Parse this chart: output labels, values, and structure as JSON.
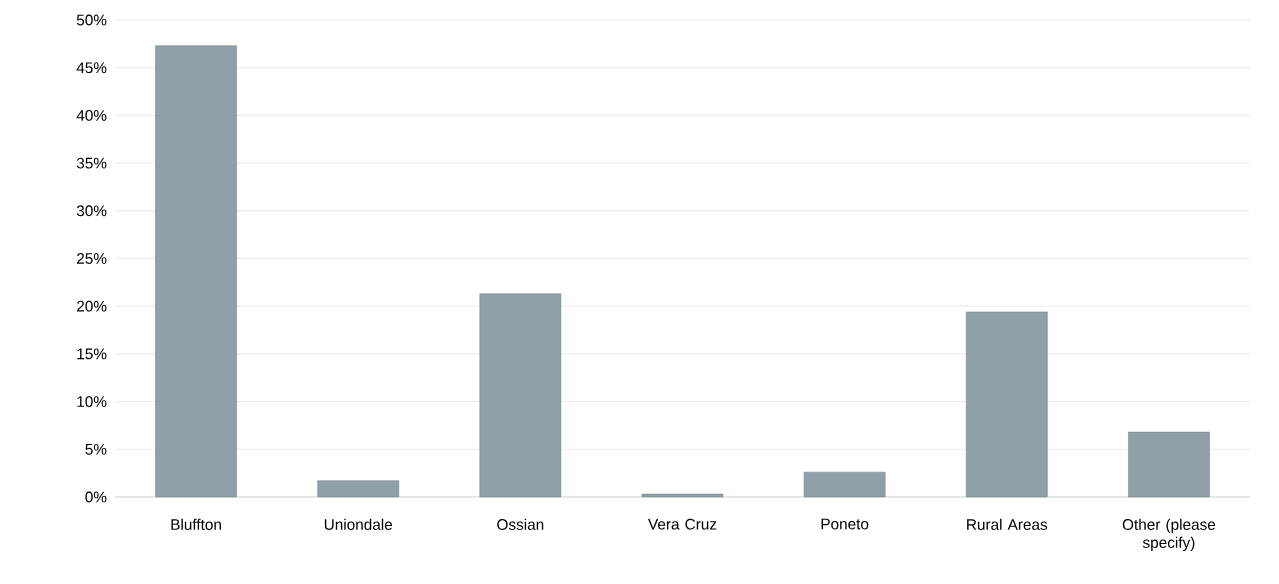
{
  "chart_data": {
    "type": "bar",
    "categories": [
      "Bluffton",
      "Uniondale",
      "Ossian",
      "Vera Cruz",
      "Poneto",
      "Rural Areas",
      "Other (please specify)"
    ],
    "values": [
      47.3,
      1.7,
      21.3,
      0.3,
      2.6,
      19.4,
      6.8
    ],
    "color": "#8fa0a8",
    "ylim": [
      0,
      50
    ],
    "yticks": [
      {
        "value": 0,
        "label": "0%"
      },
      {
        "value": 5,
        "label": "5%"
      },
      {
        "value": 10,
        "label": "10%"
      },
      {
        "value": 15,
        "label": "15%"
      },
      {
        "value": 20,
        "label": "20%"
      },
      {
        "value": 25,
        "label": "25%"
      },
      {
        "value": 30,
        "label": "30%"
      },
      {
        "value": 35,
        "label": "35%"
      },
      {
        "value": 40,
        "label": "40%"
      },
      {
        "value": 45,
        "label": "45%"
      },
      {
        "value": 50,
        "label": "50%"
      }
    ],
    "grid": "y"
  }
}
